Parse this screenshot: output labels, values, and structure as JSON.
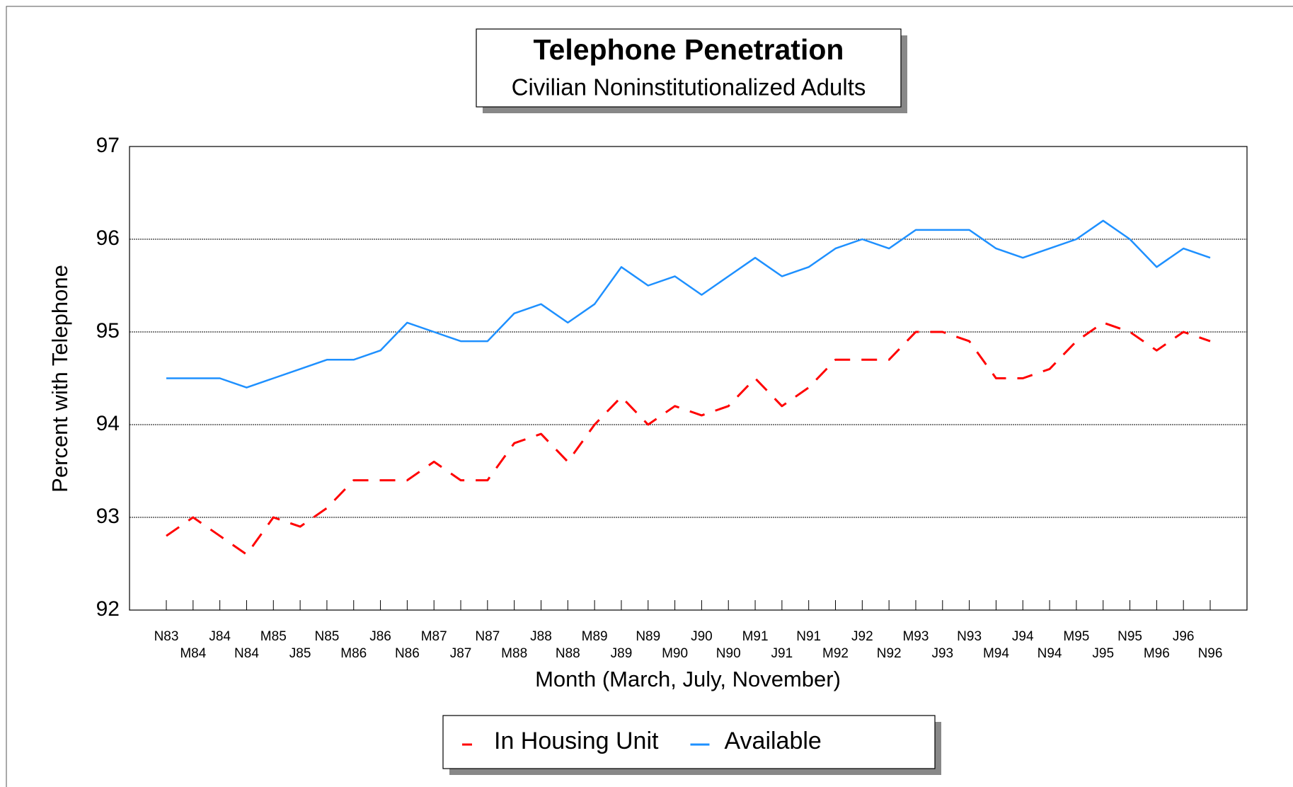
{
  "chart_data": {
    "type": "line",
    "title": "Telephone Penetration",
    "subtitle": "Civilian Noninstitutionalized Adults",
    "x_label": "Month  (March, July, November)",
    "y_label": "Percent with Telephone",
    "categories": [
      "N83",
      "M84",
      "J84",
      "N84",
      "M85",
      "J85",
      "N85",
      "M86",
      "J86",
      "N86",
      "M87",
      "J87",
      "N87",
      "M88",
      "J88",
      "N88",
      "M89",
      "J89",
      "N89",
      "M90",
      "J90",
      "N90",
      "M91",
      "J91",
      "N91",
      "M92",
      "J92",
      "N92",
      "M93",
      "J93",
      "N93",
      "M94",
      "J94",
      "N94",
      "M95",
      "J95",
      "N95",
      "M96",
      "J96",
      "N96"
    ],
    "series": [
      {
        "name": "In Housing Unit",
        "color": "#ff0000",
        "line_style": "dashed",
        "values": [
          92.8,
          93.0,
          92.8,
          92.6,
          93.0,
          92.9,
          93.1,
          93.4,
          93.4,
          93.4,
          93.6,
          93.4,
          93.4,
          93.8,
          93.9,
          93.6,
          94.0,
          94.3,
          94.0,
          94.2,
          94.1,
          94.2,
          94.5,
          94.2,
          94.4,
          94.7,
          94.7,
          94.7,
          95.0,
          95.0,
          94.9,
          94.5,
          94.5,
          94.6,
          94.9,
          95.1,
          95.0,
          94.8,
          95.0,
          94.9
        ]
      },
      {
        "name": "Available",
        "color": "#1e90ff",
        "line_style": "solid",
        "values": [
          94.5,
          94.5,
          94.5,
          94.4,
          94.5,
          94.6,
          94.7,
          94.7,
          94.8,
          95.1,
          95.0,
          94.9,
          94.9,
          95.2,
          95.3,
          95.1,
          95.3,
          95.7,
          95.5,
          95.6,
          95.4,
          95.6,
          95.8,
          95.6,
          95.7,
          95.9,
          96.0,
          95.9,
          96.1,
          96.1,
          96.1,
          95.9,
          95.8,
          95.9,
          96.0,
          96.2,
          96.0,
          95.7,
          95.9,
          95.8
        ]
      }
    ],
    "ylim": [
      92,
      97
    ],
    "yticks": [
      92,
      93,
      94,
      95,
      96,
      97
    ],
    "grid": true,
    "legend": "bottom"
  }
}
